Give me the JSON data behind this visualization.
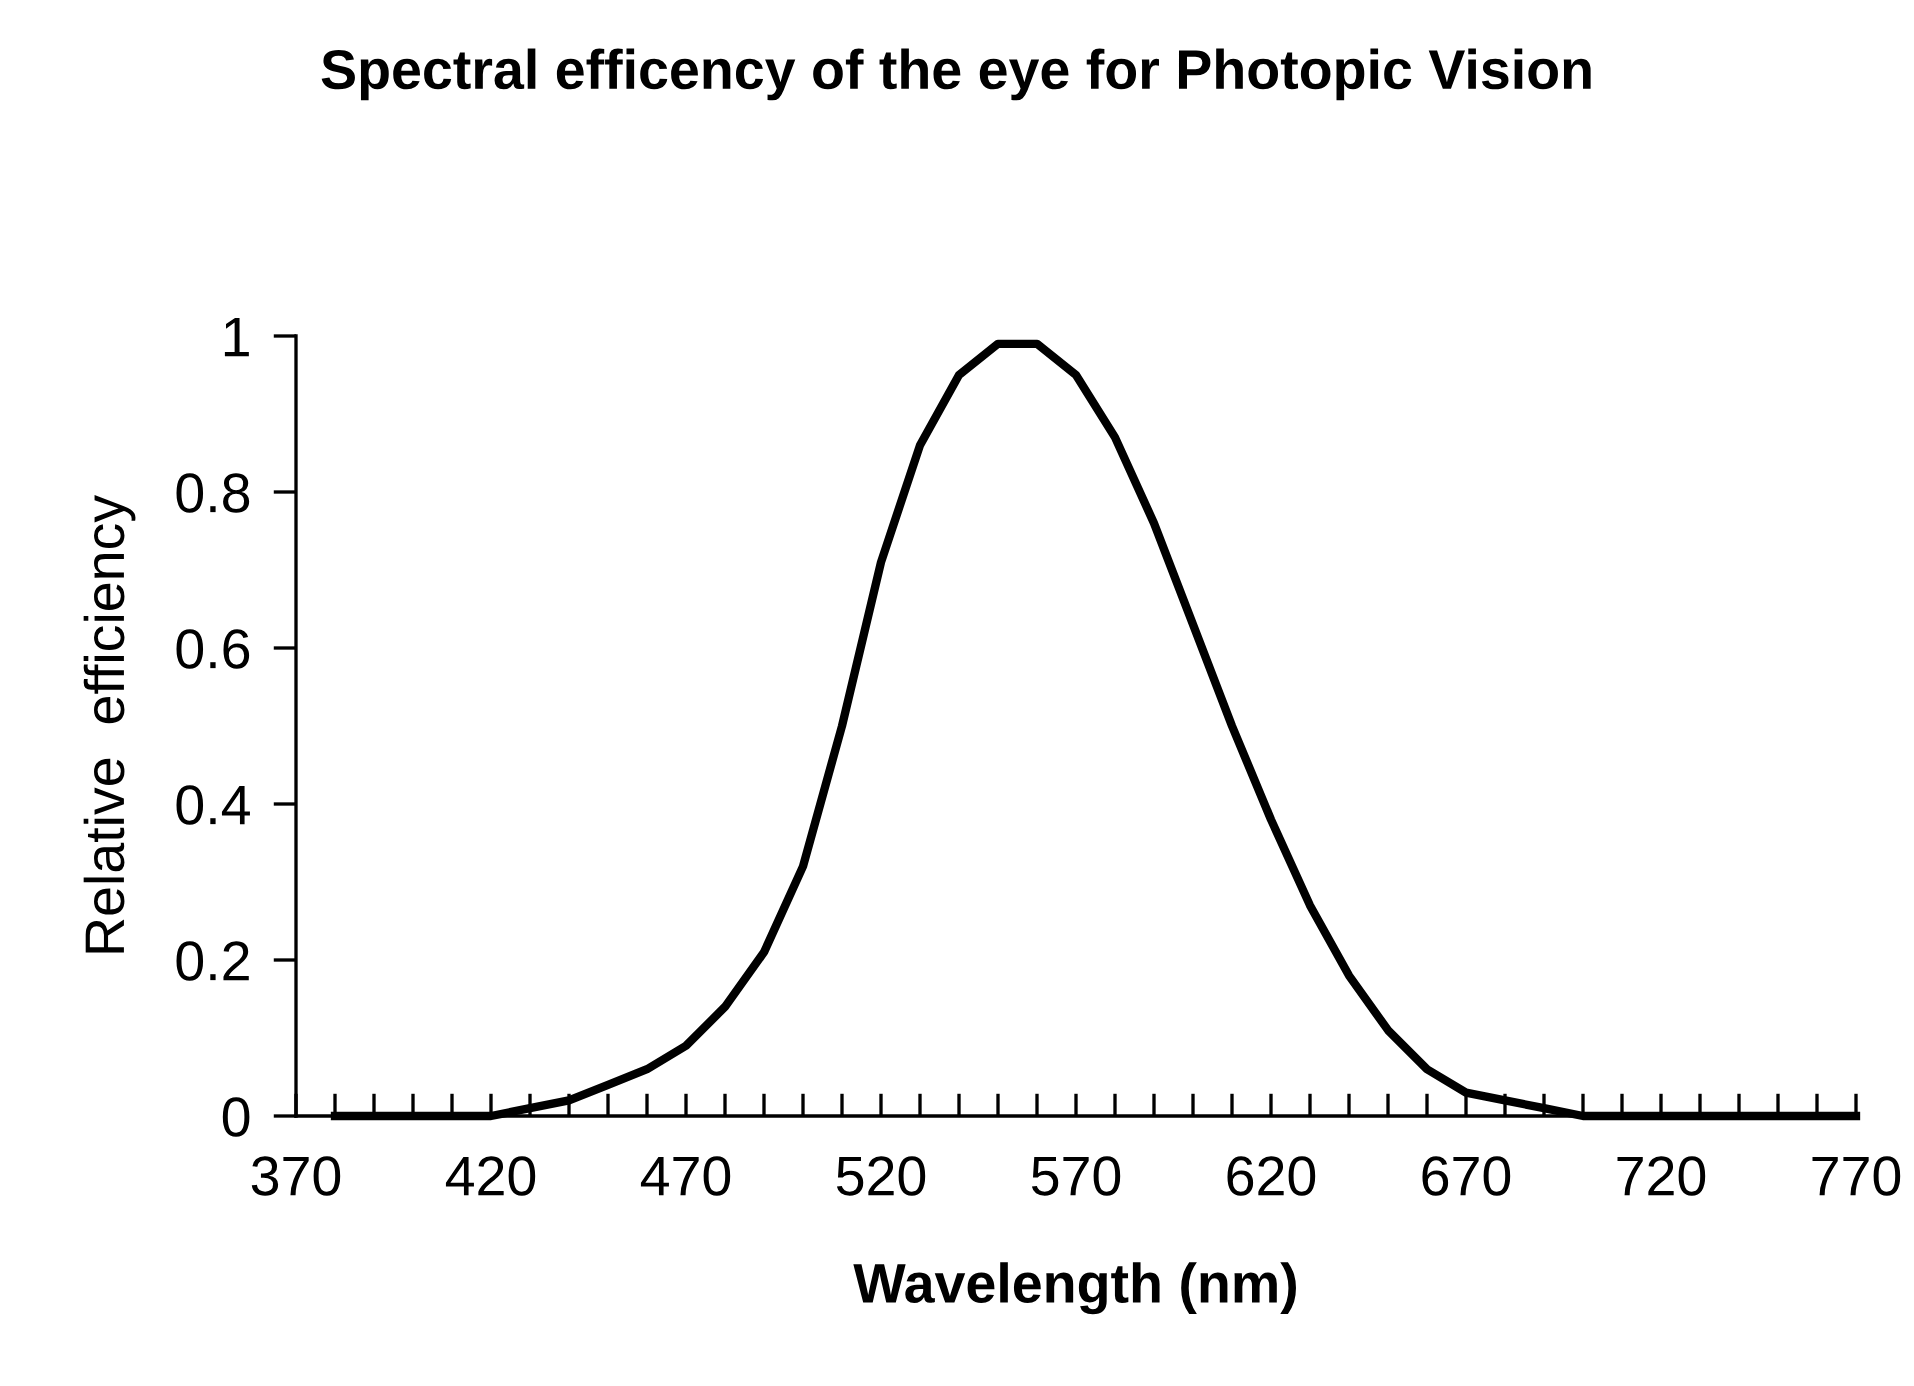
{
  "chart_data": {
    "type": "line",
    "title": "Spectral efficency of the eye for Photopic Vision",
    "xlabel": "Wavelength (nm)",
    "ylabel": "Relative  efficiency",
    "x": [
      380,
      390,
      400,
      410,
      420,
      430,
      440,
      450,
      460,
      470,
      480,
      490,
      500,
      510,
      520,
      530,
      540,
      550,
      560,
      570,
      580,
      590,
      600,
      610,
      620,
      630,
      640,
      650,
      660,
      670,
      680,
      690,
      700,
      710,
      720,
      730,
      740,
      750,
      760,
      770
    ],
    "series": [
      {
        "color": "#000000",
        "values": [
          0,
          0,
          0,
          0,
          0,
          0.01,
          0.02,
          0.04,
          0.06,
          0.09,
          0.14,
          0.21,
          0.32,
          0.5,
          0.71,
          0.86,
          0.95,
          0.99,
          0.99,
          0.95,
          0.87,
          0.76,
          0.63,
          0.5,
          0.38,
          0.27,
          0.18,
          0.11,
          0.06,
          0.03,
          0.02,
          0.01,
          0,
          0,
          0,
          0,
          0,
          0,
          0,
          0
        ]
      }
    ],
    "xlim": [
      370,
      770
    ],
    "ylim": [
      0,
      1
    ],
    "xticks": [
      370,
      {
        "value": 380,
        "label": null
      },
      {
        "value": 390,
        "label": null
      },
      {
        "value": 400,
        "label": null
      },
      {
        "value": 410,
        "label": null
      },
      420,
      {
        "value": 430,
        "label": null
      },
      {
        "value": 440,
        "label": null
      },
      {
        "value": 450,
        "label": null
      },
      {
        "value": 460,
        "label": null
      },
      470,
      {
        "value": 480,
        "label": null
      },
      {
        "value": 490,
        "label": null
      },
      {
        "value": 500,
        "label": null
      },
      {
        "value": 510,
        "label": null
      },
      520,
      {
        "value": 530,
        "label": null
      },
      {
        "value": 540,
        "label": null
      },
      {
        "value": 550,
        "label": null
      },
      {
        "value": 560,
        "label": null
      },
      570,
      {
        "value": 580,
        "label": null
      },
      {
        "value": 590,
        "label": null
      },
      {
        "value": 600,
        "label": null
      },
      {
        "value": 610,
        "label": null
      },
      620,
      {
        "value": 630,
        "label": null
      },
      {
        "value": 640,
        "label": null
      },
      {
        "value": 650,
        "label": null
      },
      {
        "value": 660,
        "label": null
      },
      670,
      {
        "value": 680,
        "label": null
      },
      {
        "value": 690,
        "label": null
      },
      {
        "value": 700,
        "label": null
      },
      {
        "value": 710,
        "label": null
      },
      720,
      {
        "value": 730,
        "label": null
      },
      {
        "value": 740,
        "label": null
      },
      {
        "value": 750,
        "label": null
      },
      {
        "value": 760,
        "label": null
      },
      770
    ],
    "yticks": [
      0,
      0.2,
      0.4,
      0.6,
      0.8,
      1
    ],
    "grid": false,
    "legend": false,
    "marker": "none",
    "line_style": "solid"
  }
}
